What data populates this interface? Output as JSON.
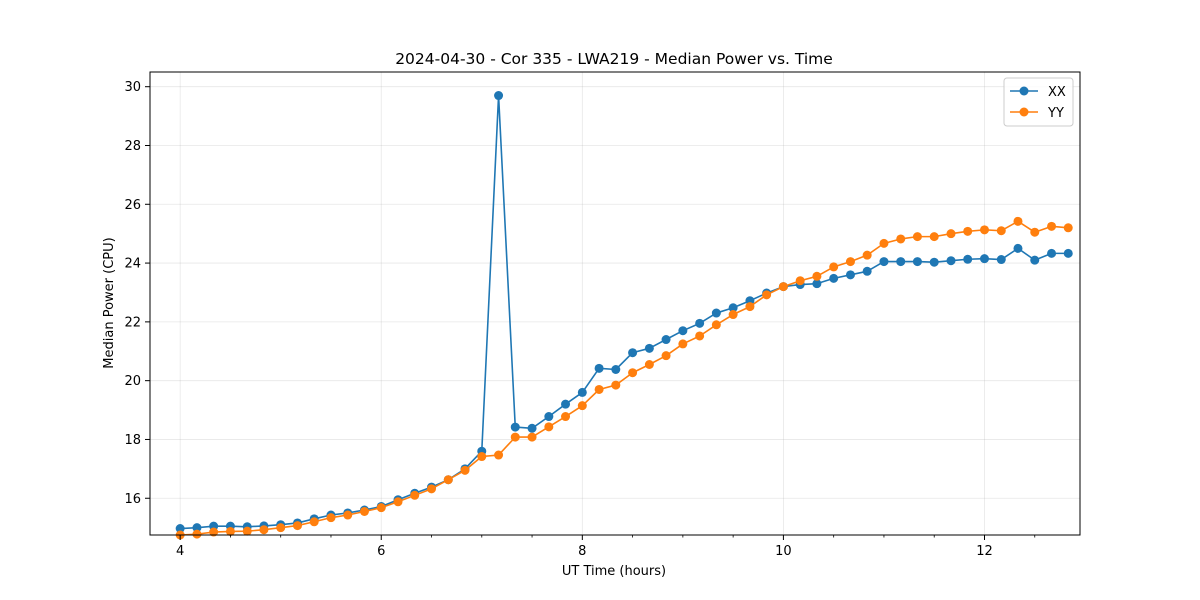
{
  "chart_data": {
    "type": "line",
    "title": "2024-04-30 - Cor 335 - LWA219 - Median Power vs. Time",
    "xlabel": "UT Time (hours)",
    "ylabel": "Median Power (CPU)",
    "xlim": [
      3.7,
      12.95
    ],
    "ylim": [
      14.75,
      30.5
    ],
    "xticks": [
      4,
      6,
      8,
      10,
      12
    ],
    "xtick_labels": [
      "4",
      "6",
      "8",
      "10",
      "12"
    ],
    "yticks": [
      16,
      18,
      20,
      22,
      24,
      26,
      28,
      30
    ],
    "ytick_labels": [
      "16",
      "18",
      "20",
      "22",
      "24",
      "26",
      "28",
      "30"
    ],
    "grid": true,
    "legend_position": "top-right",
    "x": [
      4.0,
      4.167,
      4.333,
      4.5,
      4.667,
      4.833,
      5.0,
      5.167,
      5.333,
      5.5,
      5.667,
      5.833,
      6.0,
      6.167,
      6.333,
      6.5,
      6.667,
      6.833,
      7.0,
      7.167,
      7.333,
      7.5,
      7.667,
      7.833,
      8.0,
      8.167,
      8.333,
      8.5,
      8.667,
      8.833,
      9.0,
      9.167,
      9.333,
      9.5,
      9.667,
      9.833,
      10.0,
      10.167,
      10.333,
      10.5,
      10.667,
      10.833,
      11.0,
      11.167,
      11.333,
      11.5,
      11.667,
      11.833,
      12.0,
      12.167,
      12.333,
      12.5,
      12.667,
      12.833
    ],
    "series": [
      {
        "name": "XX",
        "color": "#1f77b4",
        "values": [
          14.97,
          15.0,
          15.05,
          15.05,
          15.03,
          15.06,
          15.1,
          15.16,
          15.3,
          15.43,
          15.5,
          15.6,
          15.72,
          15.95,
          16.17,
          16.38,
          16.63,
          17.0,
          17.6,
          29.7,
          18.42,
          18.38,
          18.78,
          19.2,
          19.6,
          20.42,
          20.38,
          20.95,
          21.1,
          21.4,
          21.7,
          21.95,
          22.3,
          22.48,
          22.72,
          22.98,
          23.2,
          23.27,
          23.3,
          23.48,
          23.6,
          23.72,
          24.05,
          24.05,
          24.05,
          24.03,
          24.08,
          24.13,
          24.15,
          24.12,
          24.5,
          24.1,
          24.33,
          24.33
        ]
      },
      {
        "name": "YY",
        "color": "#ff7f0e",
        "values": [
          14.75,
          14.78,
          14.85,
          14.87,
          14.88,
          14.93,
          15.0,
          15.07,
          15.2,
          15.34,
          15.43,
          15.55,
          15.68,
          15.88,
          16.1,
          16.32,
          16.63,
          16.95,
          17.42,
          17.47,
          18.08,
          18.08,
          18.43,
          18.78,
          19.15,
          19.7,
          19.85,
          20.27,
          20.55,
          20.85,
          21.25,
          21.52,
          21.9,
          22.25,
          22.52,
          22.92,
          23.2,
          23.4,
          23.55,
          23.87,
          24.05,
          24.27,
          24.67,
          24.82,
          24.9,
          24.9,
          25.0,
          25.08,
          25.13,
          25.1,
          25.42,
          25.05,
          25.25,
          25.2
        ]
      }
    ]
  }
}
